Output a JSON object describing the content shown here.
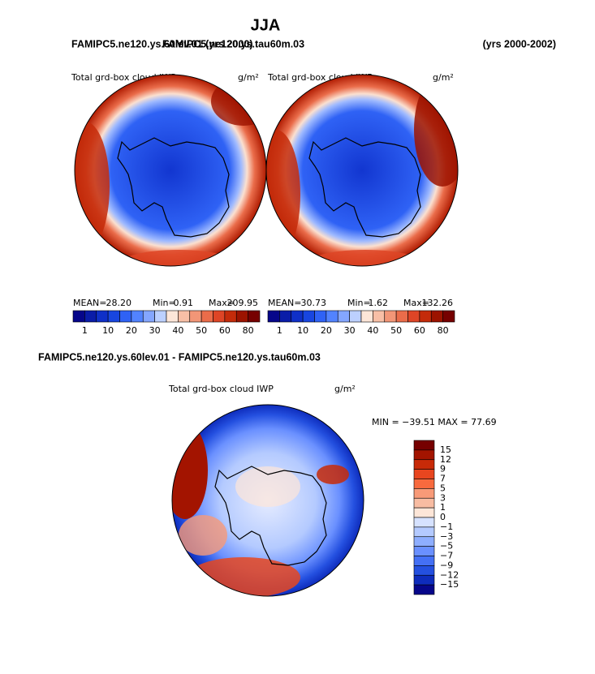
{
  "title": "JJA",
  "header": {
    "left": "FAMIPC5.ne120.ys.60lev.01 (yrs 2000)",
    "left_overlap": "FAMIPC5.ne120.ys.tau60m.03",
    "right": "(yrs 2000-2002)"
  },
  "panels": [
    {
      "title": "Total grd-box cloud IWP",
      "units": "g/m²",
      "stats": [
        {
          "label": "MEAN=",
          "value": "28.20"
        },
        {
          "label": "Min=",
          "value": "0.91"
        },
        {
          "label": "Max=",
          "value": "209.95"
        }
      ]
    },
    {
      "title": "Total grd-box cloud IWP",
      "units": "g/m²",
      "stats": [
        {
          "label": "MEAN=",
          "value": "30.73"
        },
        {
          "label": "Min=",
          "value": "1.62"
        },
        {
          "label": "Max=",
          "value": "132.26"
        }
      ]
    }
  ],
  "colorbar": {
    "colors": [
      "#06068a",
      "#0a1ca8",
      "#0f30c8",
      "#1846e0",
      "#2f62f5",
      "#5283ff",
      "#84a6ff",
      "#bcd0ff",
      "#fde6d8",
      "#f8bfa6",
      "#f29677",
      "#ea6c4a",
      "#de4526",
      "#c42b0a",
      "#9c1300",
      "#760000"
    ],
    "labels": [
      "1",
      "10",
      "20",
      "30",
      "40",
      "50",
      "60",
      "80"
    ]
  },
  "difference": {
    "header": "FAMIPC5.ne120.ys.60lev.01 - FAMIPC5.ne120.ys.tau60m.03",
    "title": "Total grd-box cloud IWP",
    "units": "g/m²",
    "minmax": "MIN = −39.51 MAX =  77.69",
    "colorbar": {
      "colors": [
        "#760000",
        "#a31400",
        "#c82a08",
        "#e8461f",
        "#f86a3e",
        "#f89a78",
        "#f8bca2",
        "#fde6d8",
        "#d6e2ff",
        "#b4caff",
        "#8eaeff",
        "#6a90ff",
        "#4470f5",
        "#2450e0",
        "#0e2cbc",
        "#06068a"
      ],
      "labels": [
        "15",
        "12",
        "9",
        "7",
        "5",
        "3",
        "1",
        "0",
        "−1",
        "−3",
        "−5",
        "−7",
        "−9",
        "−12",
        "−15"
      ]
    }
  }
}
